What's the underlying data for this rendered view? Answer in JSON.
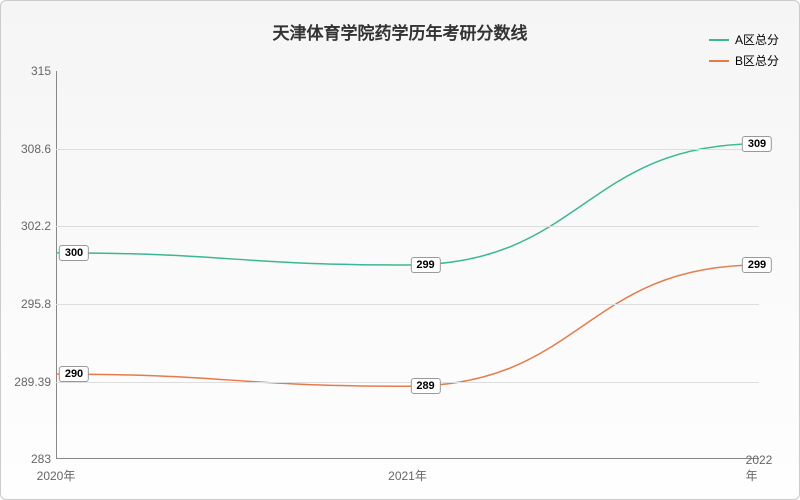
{
  "chart": {
    "type": "line",
    "title": "天津体育学院药学历年考研分数线",
    "title_fontsize": 17,
    "background_gradient": [
      "#f5f5f5",
      "#fefefe"
    ],
    "border_color": "#cccccc",
    "grid_color": "#dddddd",
    "axis_color": "#888888",
    "label_text_color": "#666666",
    "categories": [
      "2020年",
      "2021年",
      "2022年"
    ],
    "ylim": [
      283,
      315
    ],
    "yticks": [
      283,
      289.39,
      295.8,
      302.2,
      308.6,
      315
    ],
    "ytick_labels": [
      "283",
      "289.39",
      "295.8",
      "302.2",
      "308.6",
      "315"
    ],
    "series": [
      {
        "name": "A区总分",
        "color": "#3cb795",
        "values": [
          300,
          299,
          309
        ],
        "line_width": 1.5
      },
      {
        "name": "B区总分",
        "color": "#e67b4a",
        "values": [
          290,
          289,
          299
        ],
        "line_width": 1.5
      }
    ],
    "legend_position": "top-right",
    "label_fontsize": 12,
    "datalabel_fontsize": 11,
    "datalabel_bg": "#ffffff",
    "datalabel_border": "#999999"
  }
}
